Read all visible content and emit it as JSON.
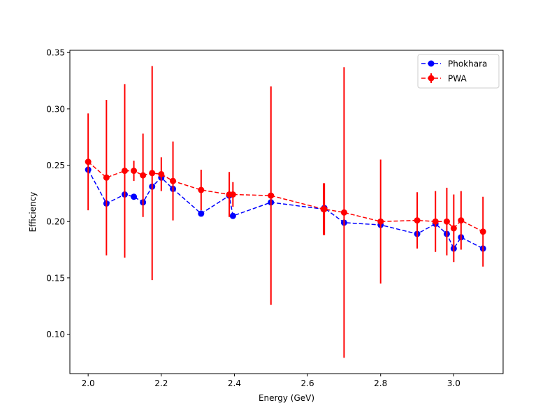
{
  "chart_data": {
    "type": "line",
    "title": "",
    "xlabel": "Energy (GeV)",
    "ylabel": "Efficiency",
    "xlim": [
      1.95,
      3.135
    ],
    "ylim": [
      0.065,
      0.352
    ],
    "xticks": [
      2.0,
      2.2,
      2.4,
      2.6,
      2.8,
      3.0
    ],
    "xtick_labels": [
      "2.0",
      "2.2",
      "2.4",
      "2.6",
      "2.8",
      "3.0"
    ],
    "yticks": [
      0.1,
      0.15,
      0.2,
      0.25,
      0.3,
      0.35
    ],
    "ytick_labels": [
      "0.10",
      "0.15",
      "0.20",
      "0.25",
      "0.30",
      "0.35"
    ],
    "grid": false,
    "legend_position": "top-right",
    "series": [
      {
        "name": "Phokhara",
        "color": "#0000ff",
        "style": "dashed",
        "marker": "circle",
        "x": [
          2.0,
          2.05,
          2.1,
          2.125,
          2.15,
          2.175,
          2.2,
          2.232,
          2.309,
          2.386,
          2.396,
          2.5,
          2.644,
          2.646,
          2.7,
          2.8,
          2.9,
          2.95,
          2.981,
          3.0,
          3.02,
          3.08
        ],
        "y": [
          0.246,
          0.216,
          0.224,
          0.222,
          0.217,
          0.231,
          0.239,
          0.229,
          0.207,
          0.223,
          0.205,
          0.217,
          0.211,
          0.212,
          0.199,
          0.197,
          0.189,
          0.198,
          0.189,
          0.176,
          0.186,
          0.176
        ]
      },
      {
        "name": "PWA",
        "color": "#ff0000",
        "style": "dashed",
        "marker": "circle",
        "x": [
          2.0,
          2.05,
          2.1,
          2.125,
          2.15,
          2.175,
          2.2,
          2.232,
          2.309,
          2.386,
          2.396,
          2.5,
          2.644,
          2.646,
          2.7,
          2.8,
          2.9,
          2.95,
          2.981,
          3.0,
          3.02,
          3.08
        ],
        "y": [
          0.253,
          0.239,
          0.245,
          0.245,
          0.241,
          0.243,
          0.242,
          0.236,
          0.228,
          0.224,
          0.224,
          0.223,
          0.211,
          0.211,
          0.208,
          0.2,
          0.201,
          0.2,
          0.2,
          0.194,
          0.201,
          0.191
        ],
        "yerr": [
          0.043,
          0.069,
          0.077,
          0.009,
          0.037,
          0.095,
          0.015,
          0.035,
          0.018,
          0.02,
          0.011,
          0.097,
          0.023,
          0.023,
          0.129,
          0.055,
          0.025,
          0.027,
          0.03,
          0.03,
          0.026,
          0.031
        ]
      }
    ]
  }
}
